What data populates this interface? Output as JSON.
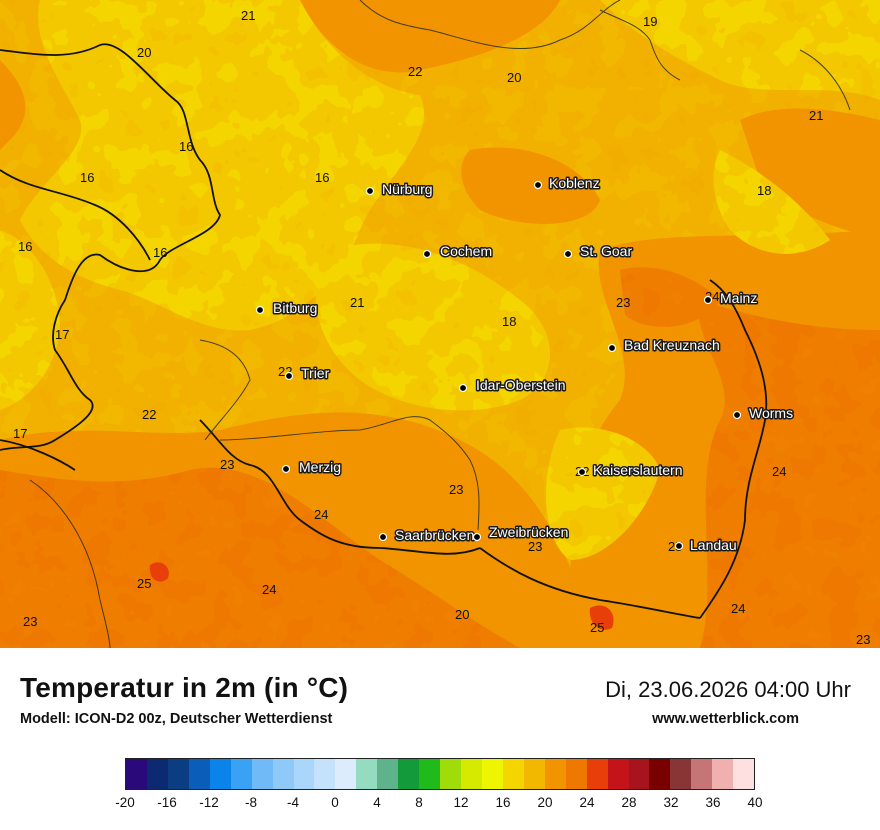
{
  "map": {
    "cities": [
      {
        "name": "Nürburg"
      },
      {
        "name": "Koblenz"
      },
      {
        "name": "Cochem"
      },
      {
        "name": "St. Goar"
      },
      {
        "name": "Bitburg"
      },
      {
        "name": "Mainz"
      },
      {
        "name": "Bad Kreuznach"
      },
      {
        "name": "Trier"
      },
      {
        "name": "Idar-Oberstein"
      },
      {
        "name": "Worms"
      },
      {
        "name": "Merzig"
      },
      {
        "name": "Kaiserslautern"
      },
      {
        "name": "Saarbrücken"
      },
      {
        "name": "Zweibrücken"
      },
      {
        "name": "Landau"
      }
    ],
    "temperatures": [
      "21",
      "19",
      "20",
      "22",
      "20",
      "16",
      "16",
      "16",
      "21",
      "18",
      "16",
      "16",
      "21",
      "18",
      "23",
      "24",
      "17",
      "22",
      "22",
      "17",
      "23",
      "23",
      "22",
      "24",
      "24",
      "23",
      "25",
      "25",
      "24",
      "20",
      "23",
      "25",
      "24",
      "23"
    ]
  },
  "footer": {
    "title": "Temperatur in 2m (in °C)",
    "model": "Modell: ICON-D2 00z, Deutscher Wetterdienst",
    "datetime": "Di, 23.06.2026 04:00 Uhr",
    "website": "www.wetterblick.com"
  },
  "legend": {
    "colors": [
      "#2a0a7a",
      "#0b2a72",
      "#0a3d82",
      "#0a5db8",
      "#0a84e8",
      "#3aa2f5",
      "#6fbaf7",
      "#8ec9f8",
      "#a9d6fa",
      "#c4e2fb",
      "#dcecfc",
      "#95dbc0",
      "#5fb38c",
      "#139a3a",
      "#20bb1b",
      "#a0dc0a",
      "#d6ea00",
      "#eef500",
      "#f4d500",
      "#f2b800",
      "#f19400",
      "#ee7800",
      "#e83e0a",
      "#c4141a",
      "#a8141e",
      "#7a0000",
      "#8a3535",
      "#c57575",
      "#f0b0b0",
      "#ffe0e0"
    ],
    "ticks": [
      "-20",
      "-16",
      "-12",
      "-8",
      "-4",
      "0",
      "4",
      "8",
      "12",
      "16",
      "20",
      "24",
      "28",
      "32",
      "36",
      "40"
    ]
  }
}
